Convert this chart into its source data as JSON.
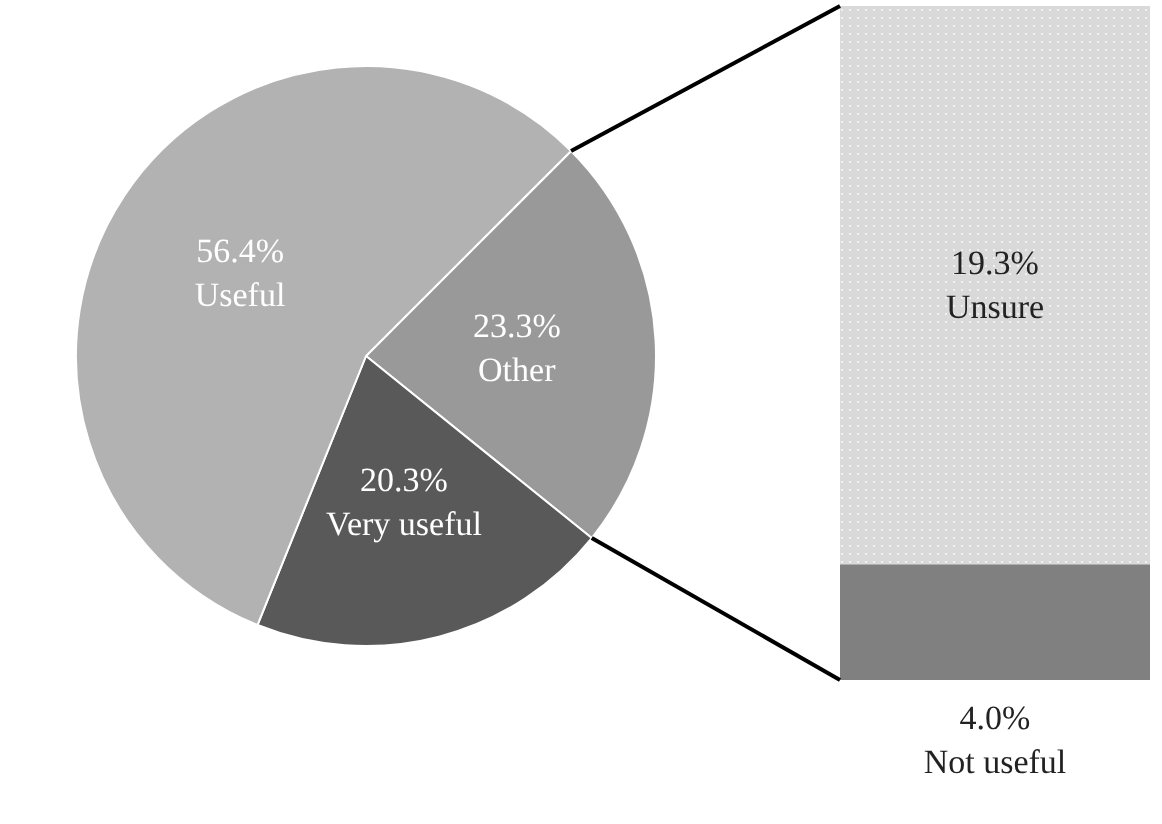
{
  "chart_data": [
    {
      "type": "pie",
      "categories": [
        "Other",
        "Very useful",
        "Useful"
      ],
      "values": [
        23.3,
        20.3,
        56.4
      ],
      "colors": [
        "#999999",
        "#595959",
        "#b2b2b2"
      ],
      "value_labels": [
        "23.3%",
        "20.3%",
        "56.4%"
      ]
    },
    {
      "type": "bar",
      "stacked": true,
      "categories": [
        null
      ],
      "series": [
        {
          "name": "Not useful",
          "color": "#808080",
          "values": [
            4.0
          ],
          "value_labels": [
            "4.0%"
          ]
        },
        {
          "name": "Unsure",
          "color": "#d9d9d9",
          "values": [
            19.3
          ],
          "value_labels": [
            "19.3%"
          ]
        }
      ]
    }
  ]
}
